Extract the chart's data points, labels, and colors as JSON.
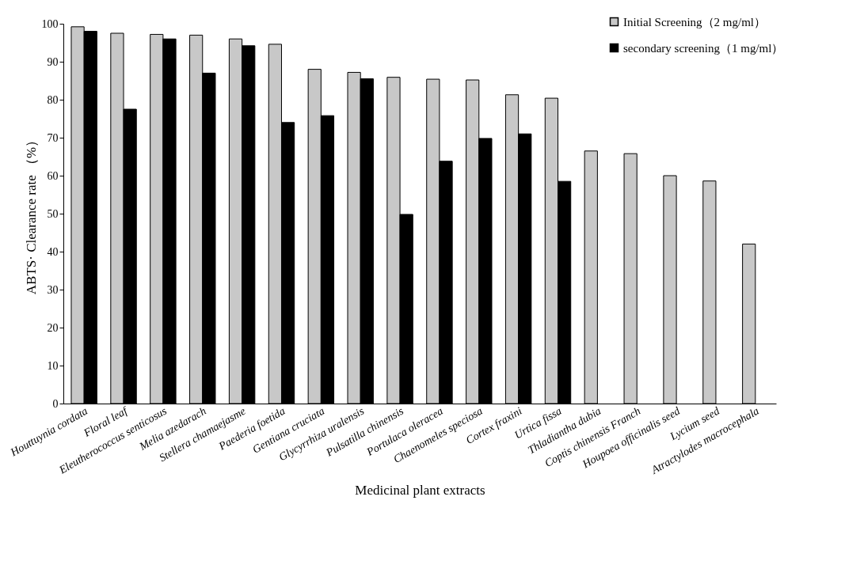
{
  "chart_data": {
    "type": "bar",
    "xlabel": "Medicinal plant extracts",
    "ylabel": "ABTS· Clearance rate （%）",
    "categories": [
      "Houttuynia cordata",
      "Floral leaf",
      "Eleutherococcus senticosus",
      "Melia azedarach",
      "Stellera chamaejasme",
      "Paederia foetida",
      "Gentiana cruciata",
      "Glycyrrhiza uralensis",
      "Pulsatilla chinensis",
      "Portulaca oleracea",
      "Chaenomeles speciosa",
      "Cortex fraxini",
      "Urtica fissa",
      "Thladiantha dubia",
      "Coptis chinensis Franch",
      "Houpoea officinalis seed",
      "Lycium seed",
      "Atractylodes macrocephala"
    ],
    "series": [
      {
        "name": "Initial  Screening（2 mg/ml）",
        "color": "#c8c8c8",
        "values": [
          99.2,
          97.5,
          97.2,
          97,
          96,
          94.6,
          88,
          87.2,
          85.9,
          85.4,
          85.2,
          81.3,
          80.4,
          66.5,
          65.8,
          60,
          58.6,
          42
        ]
      },
      {
        "name": "secondary screening（1 mg/ml）",
        "color": "#000000",
        "values": [
          98,
          77.5,
          96,
          87,
          94.2,
          74,
          75.8,
          85.5,
          49.8,
          63.8,
          69.8,
          71,
          58.5,
          null,
          null,
          null,
          null,
          null
        ]
      }
    ],
    "ylim": [
      0,
      100
    ],
    "yticks": [
      0,
      10,
      20,
      30,
      40,
      50,
      60,
      70,
      80,
      90,
      100
    ],
    "grid": false,
    "legend": "top right"
  }
}
